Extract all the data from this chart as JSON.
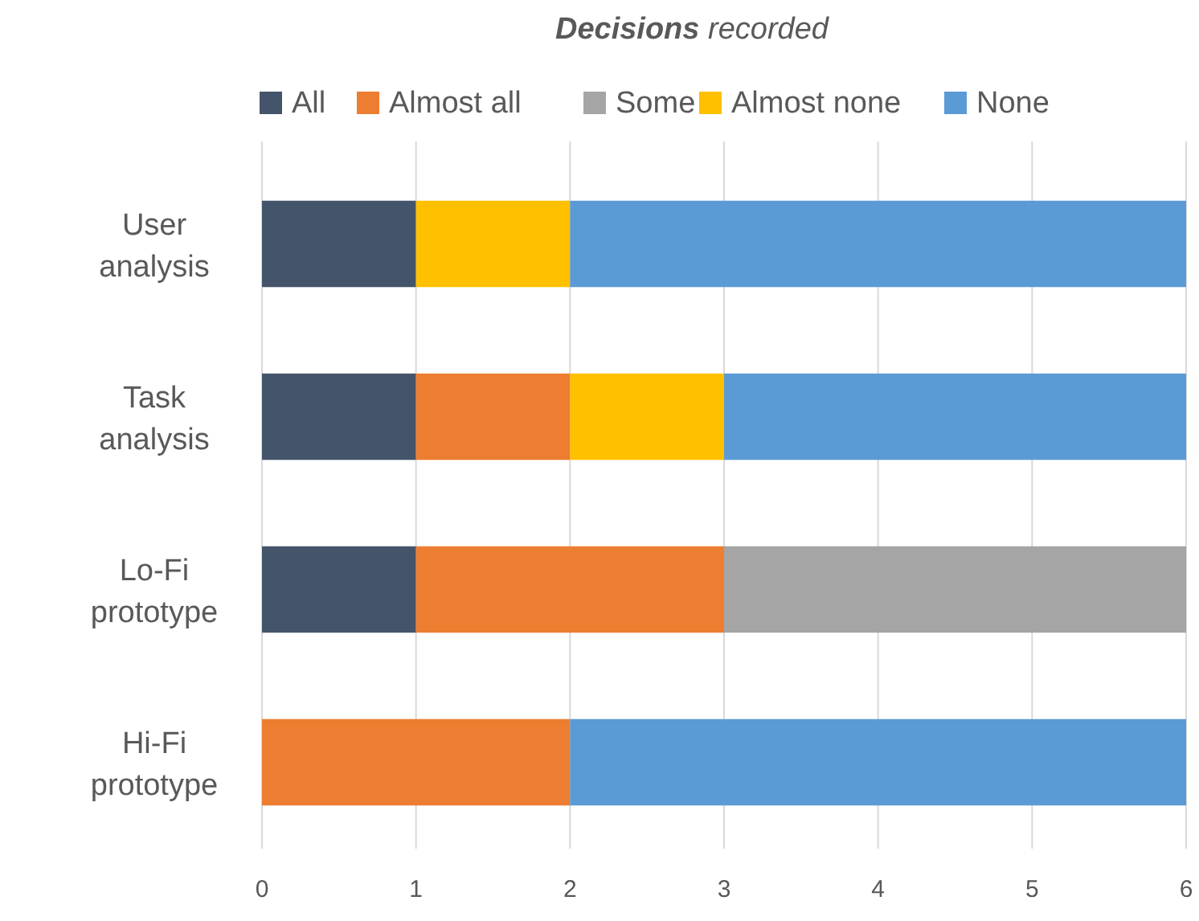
{
  "chart_data": {
    "type": "bar",
    "orientation": "horizontal",
    "stacked": true,
    "title": "Decisions recorded",
    "categories": [
      "User analysis",
      "Task analysis",
      "Lo-Fi prototype",
      "Hi-Fi prototype"
    ],
    "series": [
      {
        "name": "All",
        "color": "#44546a",
        "values": [
          1,
          1,
          1,
          0
        ]
      },
      {
        "name": "Almost all",
        "color": "#ed7d31",
        "values": [
          0,
          1,
          2,
          2
        ]
      },
      {
        "name": "Some",
        "color": "#a5a5a5",
        "values": [
          0,
          0,
          3,
          0
        ]
      },
      {
        "name": "Almost none",
        "color": "#ffc000",
        "values": [
          1,
          1,
          0,
          0
        ]
      },
      {
        "name": "None",
        "color": "#5b9bd5",
        "values": [
          4,
          3,
          0,
          4
        ]
      }
    ],
    "xlim": [
      0,
      6
    ],
    "xticks": [
      0,
      1,
      2,
      3,
      4,
      5,
      6
    ],
    "grid": "x",
    "legend": "top"
  }
}
